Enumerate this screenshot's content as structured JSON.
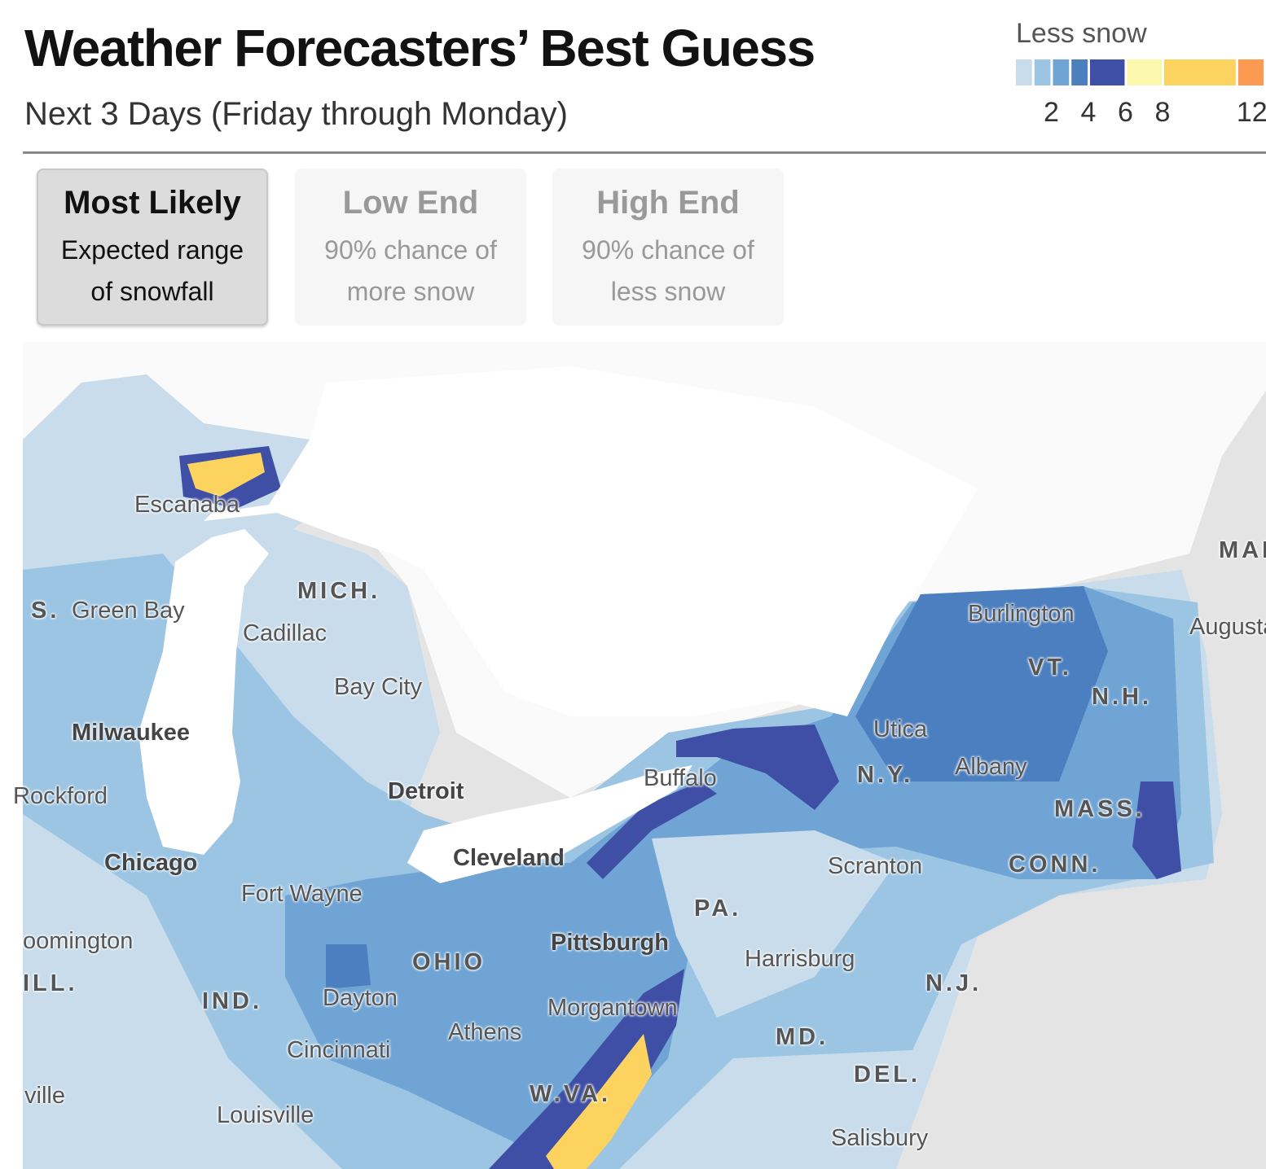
{
  "header": {
    "title": "Weather Forecasters’ Best Guess",
    "subtitle": "Next 3 Days (Friday through Monday)"
  },
  "legend": {
    "label": "Less snow",
    "range": [
      0,
      13.5
    ],
    "bins": [
      0,
      1,
      2,
      3,
      4,
      6,
      8,
      12,
      13.5
    ],
    "colors": [
      "#c9dceb",
      "#9cc5e3",
      "#6fa4d4",
      "#4c7fbf",
      "#3f4fa6",
      "#fbf8ae",
      "#fdd35f",
      "#fd9a51"
    ],
    "ticks": [
      2,
      4,
      6,
      8,
      12
    ]
  },
  "tabs": [
    {
      "title": "Most Likely",
      "line1": "Expected range",
      "line2": "of snowfall"
    },
    {
      "title": "Low End",
      "line1": "90% chance of",
      "line2": "more snow"
    },
    {
      "title": "High End",
      "line1": "90% chance of",
      "line2": "less snow"
    }
  ],
  "map": {
    "labels": [
      "Escanaba",
      "MICH.",
      "S.",
      "Green Bay",
      "Cadillac",
      "Bay City",
      "Milwaukee",
      "Rockford",
      "Detroit",
      "Chicago",
      "Fort Wayne",
      "Cleveland",
      "Buffalo",
      "Utica",
      "N.Y.",
      "Albany",
      "Burlington",
      "VT.",
      "N.H.",
      "MASS.",
      "CONN.",
      "Scranton",
      "PA.",
      "Pittsburgh",
      "OHIO",
      "Harrisburg",
      "N.J.",
      "oomington",
      "ILL.",
      "IND.",
      "Dayton",
      "Morgantown",
      "Athens",
      "Cincinnati",
      "MD.",
      "DEL.",
      "W.VA.",
      "ville",
      "Louisville",
      "Salisbury",
      "MAI",
      "Augusta"
    ]
  }
}
